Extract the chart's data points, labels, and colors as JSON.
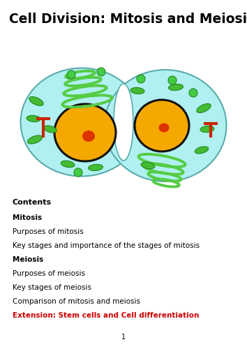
{
  "title": "Cell Division: Mitosis and Meiosis",
  "title_fontsize": 13.5,
  "contents_label": "Contents",
  "sections": [
    {
      "text": "Mitosis",
      "bold": true,
      "color": "#000000"
    },
    {
      "text": "Purposes of mitosis",
      "bold": false,
      "color": "#000000"
    },
    {
      "text": "Key stages and importance of the stages of mitosis",
      "bold": false,
      "color": "#000000"
    },
    {
      "text": "Meiosis",
      "bold": true,
      "color": "#000000"
    },
    {
      "text": "Purposes of meiosis",
      "bold": false,
      "color": "#000000"
    },
    {
      "text": "Key stages of meiosis",
      "bold": false,
      "color": "#000000"
    },
    {
      "text": "Comparison of mitosis and meiosis",
      "bold": false,
      "color": "#000000"
    },
    {
      "text": "Extension: Stem cells and Cell differentiation",
      "bold": true,
      "color": "#cc0000"
    }
  ],
  "page_number": "1",
  "bg_color": "#ffffff",
  "text_color": "#000000",
  "cell_bg": "#b0f0f0",
  "cell_border": "#5aabab",
  "nucleus_fill": "#f5a800",
  "nucleus_border": "#111111",
  "nucleolus_fill": "#dd3300",
  "er_color": "#55cc44",
  "mito_color": "#44bb33",
  "mito_border": "#228822",
  "centriole_color": "#cc2200",
  "dot_color": "#44cc44",
  "dot_border": "#228822"
}
